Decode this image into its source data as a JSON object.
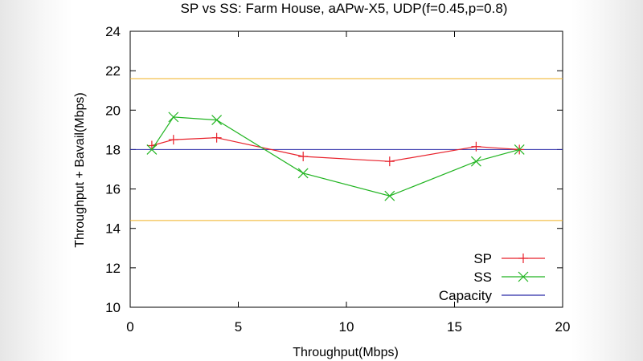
{
  "chart_data": {
    "type": "line",
    "title": "SP vs SS: Farm House, aAPw-X5, UDP(f=0.45,p=0.8)",
    "xlabel": "Throughput(Mbps)",
    "ylabel": "Throughput + Bavail(Mbps)",
    "xlim": [
      0,
      20
    ],
    "ylim": [
      10,
      24
    ],
    "xticks": [
      "0",
      "5",
      "10",
      "15",
      "20"
    ],
    "yticks": [
      "10",
      "12",
      "14",
      "16",
      "18",
      "20",
      "22",
      "24"
    ],
    "grid": false,
    "legend_position": "bottom-right",
    "series": [
      {
        "name": "SP",
        "color": "#e8212b",
        "marker": "plus",
        "points": [
          [
            1,
            18.2
          ],
          [
            2,
            18.5
          ],
          [
            4,
            18.6
          ],
          [
            8,
            17.65
          ],
          [
            12,
            17.4
          ],
          [
            16,
            18.15
          ],
          [
            18,
            18.0
          ]
        ]
      },
      {
        "name": "SS",
        "color": "#22b522",
        "marker": "cross",
        "points": [
          [
            1,
            18.0
          ],
          [
            2,
            19.65
          ],
          [
            4,
            19.5
          ],
          [
            8,
            16.8
          ],
          [
            12,
            15.65
          ],
          [
            16,
            17.4
          ],
          [
            18,
            18.0
          ]
        ]
      }
    ],
    "reference_lines": [
      {
        "name": "Capacity",
        "y": 18.0,
        "color": "#2a2aa8",
        "in_legend": true
      },
      {
        "y": 21.6,
        "color": "#f0b020",
        "in_legend": false
      },
      {
        "y": 14.4,
        "color": "#f0b020",
        "in_legend": false
      }
    ]
  }
}
